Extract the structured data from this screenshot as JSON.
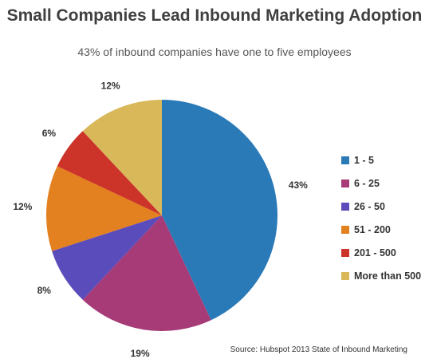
{
  "title": "Small Companies Lead Inbound Marketing Adoption",
  "subtitle": "43% of inbound companies have one to five employees",
  "source": "Source: Hubspot 2013 State of Inbound Marketing",
  "chart_data": {
    "type": "pie",
    "title": "Small Companies Lead Inbound Marketing Adoption",
    "subtitle": "43% of inbound companies have one to five employees",
    "legend_placement": "right",
    "slices": [
      {
        "label": "1 - 5",
        "value": 43,
        "display": "43%",
        "color": "#2a7ab8"
      },
      {
        "label": "6 - 25",
        "value": 19,
        "display": "19%",
        "color": "#a63b78"
      },
      {
        "label": "26 - 50",
        "value": 8,
        "display": "8%",
        "color": "#5b4cbc"
      },
      {
        "label": "51 - 200",
        "value": 12,
        "display": "12%",
        "color": "#e3801f"
      },
      {
        "label": "201 - 500",
        "value": 6,
        "display": "6%",
        "color": "#cc3329"
      },
      {
        "label": "More than 500",
        "value": 12,
        "display": "12%",
        "color": "#d9b85a"
      }
    ]
  }
}
